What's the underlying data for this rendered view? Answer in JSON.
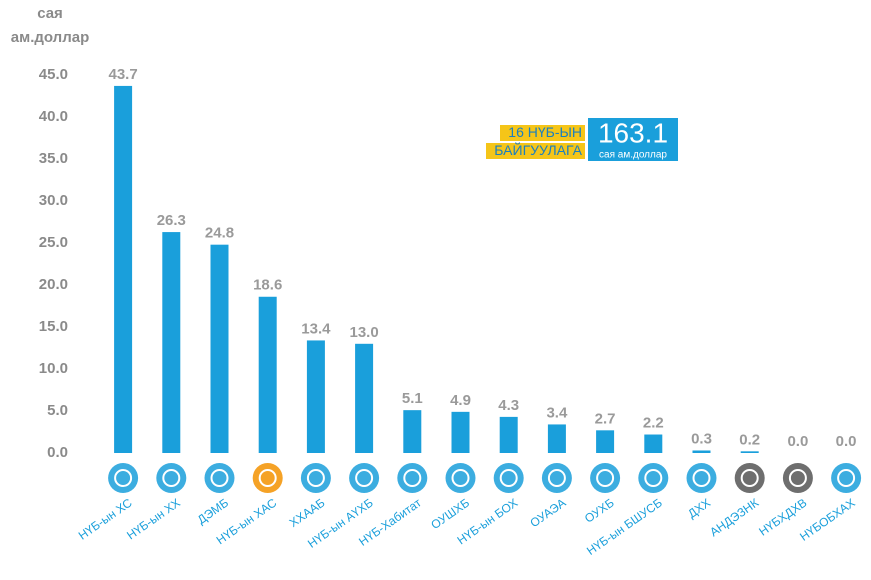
{
  "chart_data": {
    "type": "bar",
    "y_axis_label": [
      "сая",
      "ам.доллар"
    ],
    "annotation": {
      "lines": [
        "16 НҮБ-ЫН",
        "БАЙГУУЛАГА"
      ],
      "total": "163.1",
      "unit": "сая ам.доллар"
    },
    "categories": [
      "НҮБ-ын ХС",
      "НҮБ-ын ХХ",
      "ДЭМБ",
      "НҮБ-ын ХАС",
      "ХХААБ",
      "НҮБ-ын АҮХБ",
      "НҮБ-Хабитат",
      "ОУШХБ",
      "НҮБ-ын БОХ",
      "ОУАЭА",
      "ОУХБ",
      "НҮБ-ын БШУСБ",
      "ДХХ",
      "АНДЭЗНК",
      "НҮБХДХВ",
      "НҮБОБХАХ"
    ],
    "values": [
      43.7,
      26.3,
      24.8,
      18.6,
      13.4,
      13.0,
      5.1,
      4.9,
      4.3,
      3.4,
      2.7,
      2.2,
      0.3,
      0.2,
      0.0,
      0.0
    ],
    "value_labels": [
      "43.7",
      "26.3",
      "24.8",
      "18.6",
      "13.4",
      "13.0",
      "5.1",
      "4.9",
      "4.3",
      "3.4",
      "2.7",
      "2.2",
      "0.3",
      "0.2",
      "0.0",
      "0.0"
    ],
    "color": "#1a9fdb",
    "ylim": [
      0,
      46.5
    ],
    "yticks": [
      {
        "value": 0,
        "label": "0.0"
      },
      {
        "value": 5,
        "label": "5.0"
      },
      {
        "value": 10,
        "label": "10.0"
      },
      {
        "value": 15,
        "label": "15.0"
      },
      {
        "value": 20,
        "label": "20.0"
      },
      {
        "value": 25,
        "label": "25.0"
      },
      {
        "value": 30,
        "label": "30.0"
      },
      {
        "value": 35,
        "label": "35.0"
      },
      {
        "value": 40,
        "label": "40.0"
      },
      {
        "value": 45,
        "label": "45.0"
      }
    ],
    "grid": false
  }
}
